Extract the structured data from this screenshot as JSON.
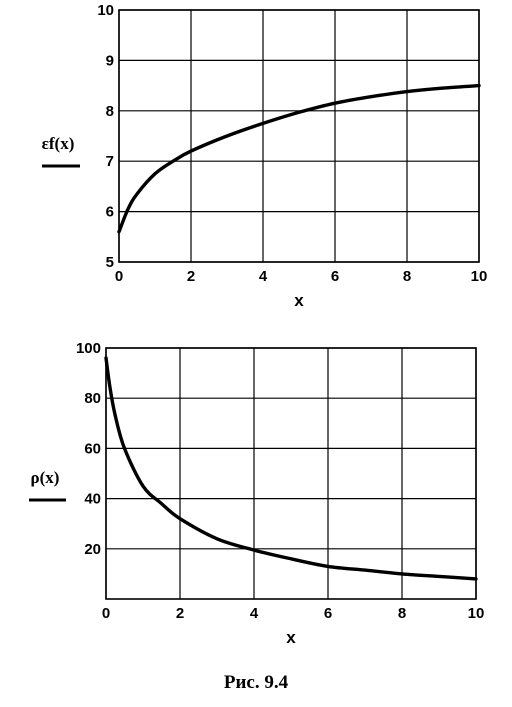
{
  "chart_data": [
    {
      "type": "line",
      "title": "",
      "xlabel": "x",
      "ylabel": "εf(x)",
      "xlim": [
        0,
        10
      ],
      "ylim": [
        5,
        10
      ],
      "x_ticks": [
        "0",
        "2",
        "4",
        "6",
        "8",
        "10"
      ],
      "y_ticks": [
        "5",
        "6",
        "7",
        "8",
        "9",
        "10"
      ],
      "grid": true,
      "series": [
        {
          "x": [
            0,
            0.25,
            0.5,
            1,
            1.5,
            2,
            3,
            4,
            5,
            6,
            7,
            8,
            9,
            10
          ],
          "y": [
            5.6,
            6.05,
            6.35,
            6.75,
            7.0,
            7.2,
            7.5,
            7.75,
            7.97,
            8.15,
            8.28,
            8.38,
            8.45,
            8.5
          ]
        }
      ]
    },
    {
      "type": "line",
      "title": "",
      "xlabel": "x",
      "ylabel": "ρ(x)",
      "xlim": [
        0,
        10
      ],
      "ylim": [
        0,
        100
      ],
      "x_ticks": [
        "0",
        "2",
        "4",
        "6",
        "8",
        "10"
      ],
      "y_ticks": [
        "20",
        "40",
        "60",
        "80",
        "100"
      ],
      "grid": true,
      "series": [
        {
          "x": [
            0,
            0.1,
            0.25,
            0.5,
            1,
            1.5,
            2,
            3,
            4,
            5,
            6,
            7,
            8,
            9,
            10
          ],
          "y": [
            96,
            85,
            73,
            60,
            45,
            38,
            32,
            24,
            19.5,
            16,
            13,
            11.5,
            10,
            9,
            8
          ]
        }
      ]
    }
  ],
  "caption": "Рис. 9.4"
}
